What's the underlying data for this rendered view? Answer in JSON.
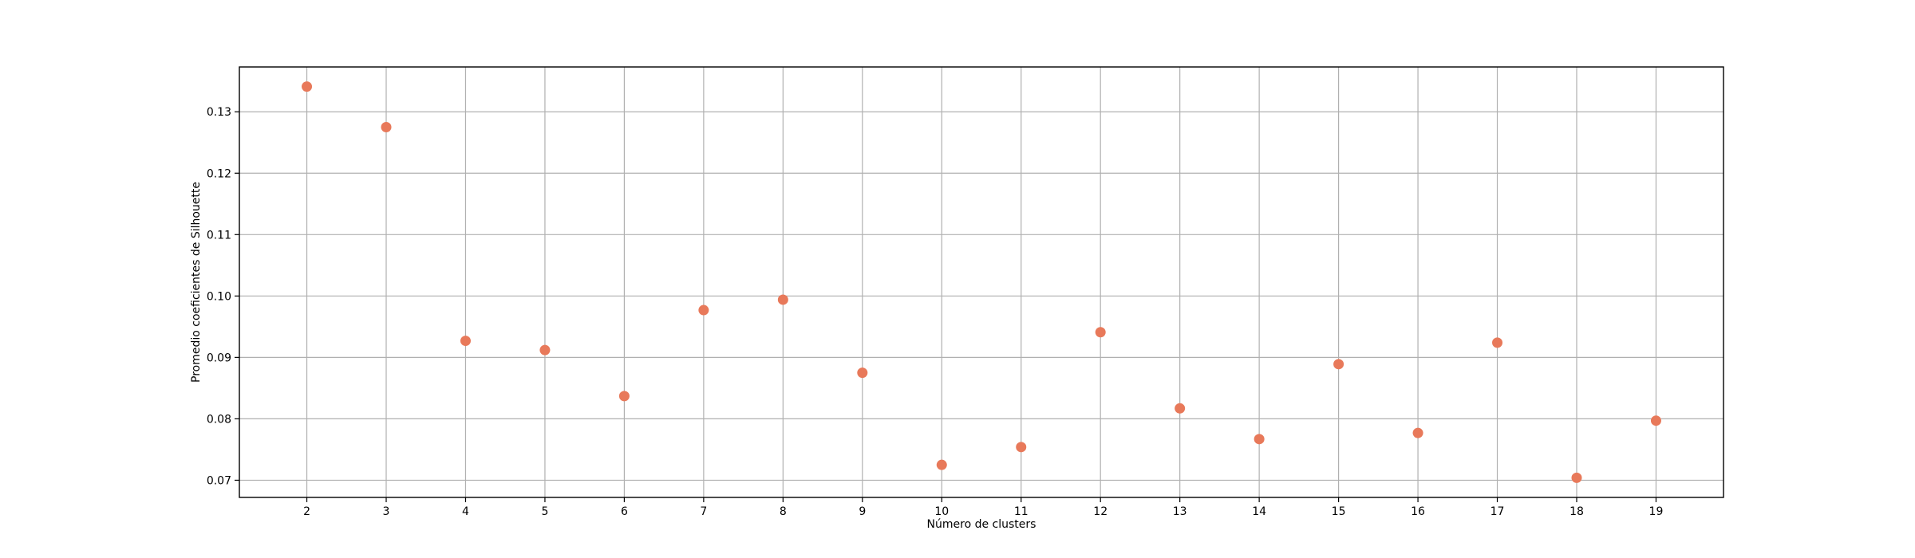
{
  "chart_data": {
    "type": "scatter",
    "title": "",
    "xlabel": "Número de clusters",
    "ylabel": "Promedio coeficientes de Silhouette",
    "x": [
      2,
      3,
      4,
      5,
      6,
      7,
      8,
      9,
      10,
      11,
      12,
      13,
      14,
      15,
      16,
      17,
      18,
      19
    ],
    "y": [
      0.1341,
      0.1275,
      0.0927,
      0.0912,
      0.0837,
      0.0977,
      0.0994,
      0.0875,
      0.0725,
      0.0754,
      0.0941,
      0.0817,
      0.0767,
      0.0889,
      0.0777,
      0.0924,
      0.0704,
      0.0797
    ],
    "xlim": [
      1.15,
      19.85
    ],
    "ylim": [
      0.0672,
      0.1373
    ],
    "xticks": [
      "2",
      "3",
      "4",
      "5",
      "6",
      "7",
      "8",
      "9",
      "10",
      "11",
      "12",
      "13",
      "14",
      "15",
      "16",
      "17",
      "18",
      "19"
    ],
    "yticks": [
      "0.07",
      "0.08",
      "0.09",
      "0.10",
      "0.11",
      "0.12",
      "0.13"
    ],
    "grid": true,
    "marker_color": "#E8795A"
  }
}
